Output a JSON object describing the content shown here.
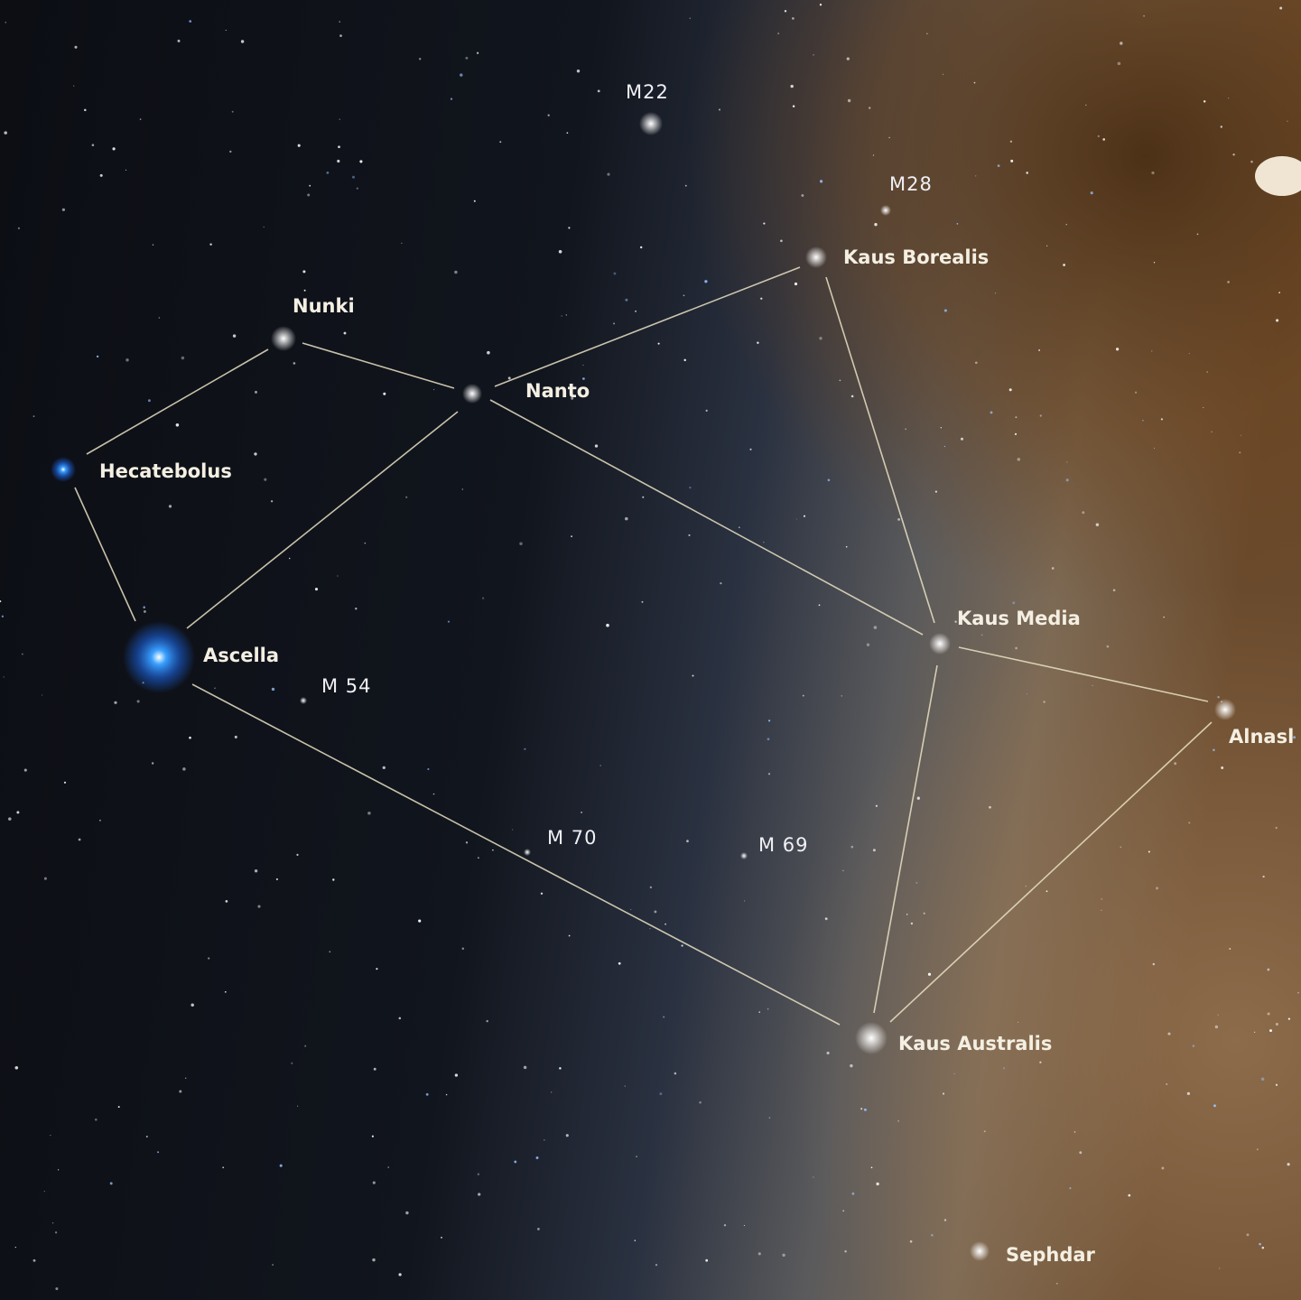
{
  "stars": [
    {
      "name": "Kaus Borealis"
    },
    {
      "name": "Nunki"
    },
    {
      "name": "Nanto"
    },
    {
      "name": "Hecatebolus"
    },
    {
      "name": "Ascella"
    },
    {
      "name": "Kaus Media"
    },
    {
      "name": "Alnasl"
    },
    {
      "name": "Kaus Australis"
    },
    {
      "name": "Sephdar"
    }
  ],
  "deep_sky_objects": [
    {
      "name": "M22"
    },
    {
      "name": "M28"
    },
    {
      "name": "M 54"
    },
    {
      "name": "M 70"
    },
    {
      "name": "M 69"
    }
  ]
}
